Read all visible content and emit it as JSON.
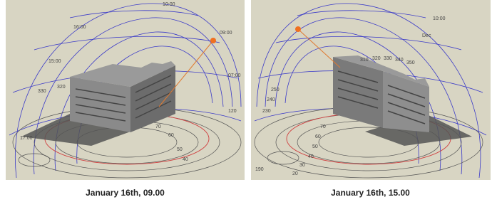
{
  "panels": [
    {
      "caption": "January 16th, 09.00",
      "labels": [
        "16:00",
        "15:00",
        "10:00",
        "09:00",
        "07:00",
        "330",
        "320",
        "70",
        "60",
        "50",
        "40",
        "120",
        "17:00"
      ]
    },
    {
      "caption": "January 16th, 15.00",
      "labels": [
        "Dec",
        "10:00",
        "310",
        "320",
        "330",
        "340",
        "350",
        "70",
        "60",
        "50",
        "40",
        "30",
        "20",
        "250",
        "240",
        "230",
        "190"
      ]
    }
  ]
}
